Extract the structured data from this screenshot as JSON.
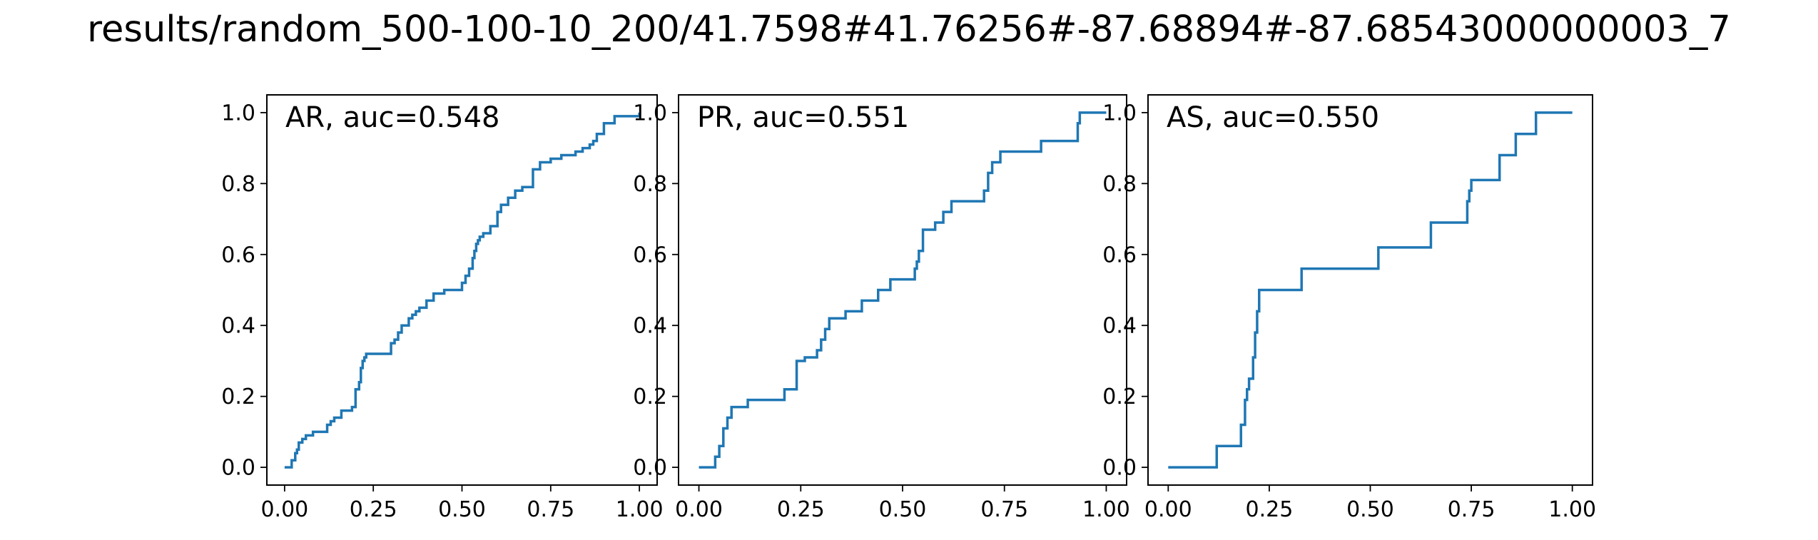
{
  "figure": {
    "title": "results/random_500-100-10_200/41.7598#41.76256#-87.68894#-87.68543000000003_7"
  },
  "chart_data": [
    {
      "type": "line",
      "step": true,
      "title": "AR, auc=0.548",
      "xlabel": "",
      "ylabel": "",
      "xlim": [
        -0.05,
        1.05
      ],
      "ylim": [
        -0.05,
        1.05
      ],
      "xticks": [
        0.0,
        0.25,
        0.5,
        0.75,
        1.0
      ],
      "xtick_labels": [
        "0.00",
        "0.25",
        "0.50",
        "0.75",
        "1.00"
      ],
      "yticks": [
        0.0,
        0.2,
        0.4,
        0.6,
        0.8,
        1.0
      ],
      "ytick_labels": [
        "0.0",
        "0.2",
        "0.4",
        "0.6",
        "0.8",
        "1.0"
      ],
      "grid": false,
      "line_color": "#1f77b4",
      "series": [
        {
          "x": [
            0.0,
            0.02,
            0.03,
            0.035,
            0.04,
            0.05,
            0.06,
            0.08,
            0.12,
            0.13,
            0.14,
            0.16,
            0.19,
            0.2,
            0.21,
            0.215,
            0.22,
            0.225,
            0.23,
            0.3,
            0.31,
            0.32,
            0.33,
            0.35,
            0.36,
            0.37,
            0.38,
            0.4,
            0.42,
            0.45,
            0.47,
            0.5,
            0.51,
            0.52,
            0.53,
            0.535,
            0.54,
            0.545,
            0.55,
            0.56,
            0.58,
            0.6,
            0.61,
            0.63,
            0.65,
            0.67,
            0.7,
            0.72,
            0.75,
            0.78,
            0.82,
            0.84,
            0.86,
            0.87,
            0.88,
            0.9,
            0.93,
            1.0
          ],
          "y": [
            0.0,
            0.02,
            0.04,
            0.05,
            0.07,
            0.08,
            0.09,
            0.1,
            0.12,
            0.13,
            0.14,
            0.16,
            0.17,
            0.22,
            0.24,
            0.28,
            0.3,
            0.31,
            0.32,
            0.35,
            0.36,
            0.38,
            0.4,
            0.42,
            0.43,
            0.44,
            0.45,
            0.47,
            0.49,
            0.5,
            0.5,
            0.52,
            0.54,
            0.56,
            0.59,
            0.61,
            0.63,
            0.64,
            0.65,
            0.66,
            0.68,
            0.72,
            0.74,
            0.76,
            0.78,
            0.79,
            0.84,
            0.86,
            0.87,
            0.88,
            0.89,
            0.9,
            0.91,
            0.92,
            0.94,
            0.97,
            0.99,
            1.0
          ]
        }
      ]
    },
    {
      "type": "line",
      "step": true,
      "title": "PR, auc=0.551",
      "xlabel": "",
      "ylabel": "",
      "xlim": [
        -0.05,
        1.05
      ],
      "ylim": [
        -0.05,
        1.05
      ],
      "xticks": [
        0.0,
        0.25,
        0.5,
        0.75,
        1.0
      ],
      "xtick_labels": [
        "0.00",
        "0.25",
        "0.50",
        "0.75",
        "1.00"
      ],
      "yticks": [
        0.0,
        0.2,
        0.4,
        0.6,
        0.8,
        1.0
      ],
      "ytick_labels": [
        "0.0",
        "0.2",
        "0.4",
        "0.6",
        "0.8",
        "1.0"
      ],
      "grid": false,
      "line_color": "#1f77b4",
      "series": [
        {
          "x": [
            0.0,
            0.04,
            0.05,
            0.06,
            0.07,
            0.08,
            0.11,
            0.12,
            0.21,
            0.24,
            0.26,
            0.29,
            0.3,
            0.31,
            0.32,
            0.36,
            0.4,
            0.44,
            0.47,
            0.53,
            0.535,
            0.54,
            0.55,
            0.58,
            0.6,
            0.62,
            0.66,
            0.7,
            0.71,
            0.72,
            0.74,
            0.76,
            0.84,
            0.87,
            0.93,
            0.935,
            1.0
          ],
          "y": [
            0.0,
            0.03,
            0.06,
            0.11,
            0.14,
            0.17,
            0.17,
            0.19,
            0.22,
            0.3,
            0.31,
            0.33,
            0.36,
            0.39,
            0.42,
            0.44,
            0.47,
            0.5,
            0.53,
            0.56,
            0.58,
            0.61,
            0.67,
            0.69,
            0.72,
            0.75,
            0.75,
            0.78,
            0.83,
            0.86,
            0.89,
            0.89,
            0.92,
            0.92,
            0.97,
            1.0,
            1.0
          ]
        }
      ]
    },
    {
      "type": "line",
      "step": true,
      "title": "AS, auc=0.550",
      "xlabel": "",
      "ylabel": "",
      "xlim": [
        -0.05,
        1.05
      ],
      "ylim": [
        -0.05,
        1.05
      ],
      "xticks": [
        0.0,
        0.25,
        0.5,
        0.75,
        1.0
      ],
      "xtick_labels": [
        "0.00",
        "0.25",
        "0.50",
        "0.75",
        "1.00"
      ],
      "yticks": [
        0.0,
        0.2,
        0.4,
        0.6,
        0.8,
        1.0
      ],
      "ytick_labels": [
        "0.0",
        "0.2",
        "0.4",
        "0.6",
        "0.8",
        "1.0"
      ],
      "grid": false,
      "line_color": "#1f77b4",
      "series": [
        {
          "x": [
            0.0,
            0.12,
            0.18,
            0.19,
            0.195,
            0.2,
            0.21,
            0.215,
            0.22,
            0.225,
            0.24,
            0.33,
            0.52,
            0.65,
            0.74,
            0.745,
            0.75,
            0.82,
            0.86,
            0.91,
            1.0
          ],
          "y": [
            0.0,
            0.06,
            0.12,
            0.19,
            0.22,
            0.25,
            0.31,
            0.38,
            0.44,
            0.5,
            0.5,
            0.56,
            0.62,
            0.69,
            0.75,
            0.78,
            0.81,
            0.88,
            0.94,
            1.0,
            1.0
          ]
        }
      ]
    }
  ]
}
